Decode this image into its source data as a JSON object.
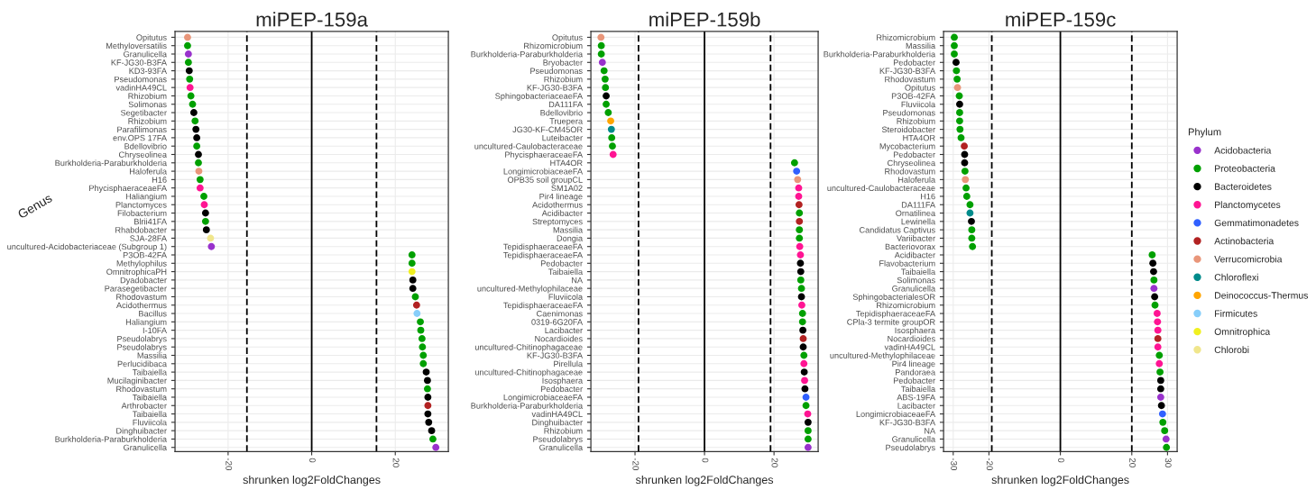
{
  "chart_data": [
    {
      "type": "scatter",
      "orientation": "horizontal",
      "title": "miPEP-159a",
      "xlabel": "shrunken log2FoldChanges",
      "ylabel": "Genus",
      "marker": "circle",
      "grid": true,
      "xlim": [
        -32.7,
        32.7
      ],
      "xticks": [
        -20,
        0,
        20
      ],
      "ref_lines": [
        {
          "axis": "x",
          "value": 0,
          "line_style": "solid",
          "color": "#000000"
        },
        {
          "axis": "x",
          "value": -15.5,
          "line_style": "dashed",
          "color": "#000000"
        },
        {
          "axis": "x",
          "value": 15.5,
          "line_style": "dashed",
          "color": "#000000"
        }
      ],
      "categories": [
        "Opitutus",
        "Methyloversatilis",
        "Granulicella",
        "KF-JG30-B3FA",
        "KD3-93FA",
        "Pseudomonas",
        "vadinHA49CL",
        "Rhizobium",
        "Solimonas",
        "Segetibacter",
        "Rhizobium",
        "Parafilimonas",
        "env.OPS 17FA",
        "Bdellovibrio",
        "Chryseolinea",
        "Burkholderia-Paraburkholderia",
        "Haloferula",
        "H16",
        "PhycisphaeraceaeFA",
        "Haliangium",
        "Planctomyces",
        "Filobacterium",
        "Blrii41FA",
        "Rhabdobacter",
        "SJA-28FA",
        "uncultured-Acidobacteriaceae (Subgroup 1)",
        "P3OB-42FA",
        "Methylophilus",
        "OmnitrophicaPH",
        "Dyadobacter",
        "Parasegetibacter",
        "Rhodovastum",
        "Acidothermus",
        "Bacillus",
        "Haliangium",
        "I-10FA",
        "Pseudolabrys",
        "Pseudolabrys",
        "Massilia",
        "Perlucidibaca",
        "Taibaiella",
        "Mucilaginibacter",
        "Rhodovastum",
        "Taibaiella",
        "Arthrobacter",
        "Taibaiella",
        "Fluviicola",
        "Dinghuibacter",
        "Burkholderia-Paraburkholderia",
        "Granulicella"
      ],
      "values": [
        -29.7,
        -29.7,
        -29.5,
        -29.5,
        -29.3,
        -29.2,
        -29.1,
        -28.9,
        -28.5,
        -28.2,
        -27.9,
        -27.7,
        -27.5,
        -27.5,
        -27.1,
        -27.1,
        -27.0,
        -26.7,
        -26.7,
        -25.8,
        -25.7,
        -25.4,
        -25.4,
        -25.2,
        -24.2,
        -24.0,
        24.0,
        24.0,
        24.0,
        24.2,
        24.2,
        24.8,
        25.1,
        25.2,
        26.0,
        26.1,
        26.4,
        26.5,
        26.7,
        26.7,
        27.4,
        27.7,
        27.7,
        27.8,
        27.8,
        27.8,
        28.0,
        28.7,
        29.0,
        29.7
      ],
      "colors": [
        "#e9967a",
        "#00a000",
        "#9932cc",
        "#00a000",
        "#000000",
        "#00a000",
        "#ff1493",
        "#00a000",
        "#00a000",
        "#000000",
        "#00a000",
        "#000000",
        "#000000",
        "#00a000",
        "#000000",
        "#00a000",
        "#e9967a",
        "#00a000",
        "#ff1493",
        "#00a000",
        "#ff1493",
        "#000000",
        "#00a000",
        "#000000",
        "#f0e68c",
        "#9932cc",
        "#00a000",
        "#00a000",
        "#f0f020",
        "#000000",
        "#000000",
        "#00a000",
        "#b22222",
        "#87cefa",
        "#00a000",
        "#00a000",
        "#00a000",
        "#00a000",
        "#00a000",
        "#00a000",
        "#000000",
        "#000000",
        "#00a000",
        "#000000",
        "#b22222",
        "#000000",
        "#000000",
        "#000000",
        "#00a000",
        "#9932cc"
      ]
    },
    {
      "type": "scatter",
      "orientation": "horizontal",
      "title": "miPEP-159b",
      "xlabel": "shrunken log2FoldChanges",
      "marker": "circle",
      "grid": true,
      "xlim": [
        -32.7,
        32.7
      ],
      "xticks": [
        -20,
        0,
        20
      ],
      "ref_lines": [
        {
          "axis": "x",
          "value": 0,
          "line_style": "solid",
          "color": "#000000"
        },
        {
          "axis": "x",
          "value": -19,
          "line_style": "dashed",
          "color": "#000000"
        },
        {
          "axis": "x",
          "value": 19,
          "line_style": "dashed",
          "color": "#000000"
        }
      ],
      "categories": [
        "Opitutus",
        "Rhizomicrobium",
        "Burkholderia-Paraburkholderia",
        "Bryobacter",
        "Pseudomonas",
        "Rhizobium",
        "KF-JG30-B3FA",
        "SphingobacteriaceaeFA",
        "DA111FA",
        "Bdellovibrio",
        "Truepera",
        "JG30-KF-CM45OR",
        "Luteibacter",
        "uncultured-Caulobacteraceae",
        "PhycisphaeraceaeFA",
        "HTA4OR",
        "LongimicrobiaceaeFA",
        "OPB35 soil groupCL",
        "SM1A02",
        "Pir4 lineage",
        "Acidothermus",
        "Acidibacter",
        "Streptomyces",
        "Massilia",
        "Dongia",
        "TepidisphaeraceaeFA",
        "TepidisphaeraceaeFA",
        "Pedobacter",
        "Taibaiella",
        "NA",
        "uncultured-Methylophilaceae",
        "Fluviicola",
        "TepidisphaeraceaeFA",
        "Caenimonas",
        "0319-6G20FA",
        "Lacibacter",
        "Nocardioides",
        "uncultured-Chitinophagaceae",
        "KF-JG30-B3FA",
        "Pirellula",
        "uncultured-Chitinophagaceae",
        "Isosphaera",
        "Pedobacter",
        "LongimicrobiaceaeFA",
        "Burkholderia-Paraburkholderia",
        "vadinHA49CL",
        "Dinghuibacter",
        "Rhizobium",
        "Pseudolabrys",
        "Granulicella"
      ],
      "values": [
        -29.8,
        -29.7,
        -29.7,
        -29.4,
        -28.9,
        -28.6,
        -28.5,
        -28.3,
        -28.3,
        -27.7,
        -27.0,
        -26.8,
        -26.7,
        -26.5,
        -26.3,
        25.9,
        26.5,
        26.8,
        27.1,
        27.1,
        27.2,
        27.3,
        27.3,
        27.3,
        27.3,
        27.4,
        27.6,
        27.6,
        27.7,
        27.7,
        27.9,
        27.9,
        28.0,
        28.2,
        28.2,
        28.3,
        28.4,
        28.4,
        28.6,
        28.6,
        28.7,
        28.8,
        28.9,
        29.2,
        29.2,
        29.7,
        29.8,
        29.8,
        29.8,
        29.8
      ],
      "colors": [
        "#e9967a",
        "#00a000",
        "#00a000",
        "#9932cc",
        "#00a000",
        "#00a000",
        "#00a000",
        "#000000",
        "#00a000",
        "#00a000",
        "#ffa500",
        "#008b8b",
        "#00a000",
        "#00a000",
        "#ff1493",
        "#00a000",
        "#3060ff",
        "#e9967a",
        "#ff1493",
        "#ff1493",
        "#b22222",
        "#00a000",
        "#b22222",
        "#00a000",
        "#00a000",
        "#ff1493",
        "#ff1493",
        "#000000",
        "#000000",
        "#00a000",
        "#00a000",
        "#000000",
        "#ff1493",
        "#00a000",
        "#00a000",
        "#000000",
        "#b22222",
        "#000000",
        "#00a000",
        "#ff1493",
        "#000000",
        "#ff1493",
        "#000000",
        "#3060ff",
        "#00a000",
        "#ff1493",
        "#000000",
        "#00a000",
        "#00a000",
        "#9932cc"
      ]
    },
    {
      "type": "scatter",
      "orientation": "horizontal",
      "title": "miPEP-159c",
      "xlabel": "shrunken log2FoldChanges",
      "marker": "circle",
      "grid": true,
      "legend": "right",
      "legend_title": "Phylum",
      "xlim": [
        -32.7,
        32.7
      ],
      "xticks": [
        -30,
        -20,
        0,
        20,
        30
      ],
      "ref_lines": [
        {
          "axis": "x",
          "value": 0,
          "line_style": "solid",
          "color": "#000000"
        },
        {
          "axis": "x",
          "value": -19.2,
          "line_style": "dashed",
          "color": "#000000"
        },
        {
          "axis": "x",
          "value": 20,
          "line_style": "dashed",
          "color": "#000000"
        }
      ],
      "categories": [
        "Rhizomicrobium",
        "Massilia",
        "Burkholderia-Paraburkholderia",
        "Pedobacter",
        "KF-JG30-B3FA",
        "Rhodovastum",
        "Opitutus",
        "P3OB-42FA",
        "Fluviicola",
        "Pseudomonas",
        "Rhizobium",
        "Steroidobacter",
        "HTA4OR",
        "Mycobacterium",
        "Pedobacter",
        "Chryseolinea",
        "Rhodovastum",
        "Haloferula",
        "uncultured-Caulobacteraceae",
        "H16",
        "DA111FA",
        "Ornatilinea",
        "Lewinella",
        "Candidatus Captivus",
        "Variibacter",
        "Bacteriovorax",
        "Acidibacter",
        "Flavobacterium",
        "Taibaiella",
        "Solimonas",
        "Granulicella",
        "SphingobacterialesOR",
        "Rhizomicrobium",
        "TepidisphaeraceaeFA",
        "CPla-3 termite groupOR",
        "Isosphaera",
        "Nocardioides",
        "vadinHA49CL",
        "uncultured-Methylophilaceae",
        "Pir4 lineage",
        "Pandoraea",
        "Pedobacter",
        "Taibaiella",
        "ABS-19FA",
        "Lacibacter",
        "LongimicrobiaceaeFA",
        "KF-JG30-B3FA",
        "NA",
        "Granulicella",
        "Pseudolabrys"
      ],
      "series": [
        {
          "name": "Acidobacteria",
          "color": "#9932cc",
          "values": [
            null,
            null,
            null,
            null,
            null,
            null,
            null,
            null,
            null,
            null,
            null,
            null,
            null,
            null,
            null,
            null,
            null,
            null,
            null,
            null,
            null,
            null,
            null,
            null,
            null,
            null,
            null,
            null,
            null,
            null,
            26.2,
            null,
            null,
            null,
            null,
            null,
            null,
            null,
            null,
            null,
            null,
            null,
            null,
            28.1,
            null,
            null,
            null,
            null,
            29.6,
            null
          ]
        },
        {
          "name": "Proteobacteria",
          "color": "#00a000",
          "values": [
            -29.7,
            -29.7,
            -29.7,
            null,
            -29.1,
            -28.9,
            null,
            -28.3,
            null,
            -28.2,
            -28.2,
            -28.1,
            -27.8,
            null,
            null,
            null,
            -26.7,
            null,
            -26.4,
            -26.2,
            -25.3,
            null,
            null,
            -24.8,
            -24.8,
            -24.6,
            25.7,
            null,
            null,
            26.2,
            null,
            null,
            26.5,
            null,
            null,
            null,
            null,
            null,
            27.7,
            null,
            27.9,
            null,
            null,
            null,
            null,
            null,
            28.7,
            29.2,
            null,
            29.7
          ]
        },
        {
          "name": "Bacteroidetes",
          "color": "#000000",
          "values": [
            null,
            null,
            null,
            -29.2,
            null,
            null,
            null,
            null,
            -28.2,
            null,
            null,
            null,
            null,
            null,
            -26.8,
            -26.8,
            null,
            null,
            null,
            null,
            null,
            null,
            -24.9,
            null,
            null,
            null,
            null,
            25.9,
            26.1,
            null,
            null,
            26.4,
            null,
            null,
            null,
            null,
            null,
            null,
            null,
            null,
            null,
            28.1,
            28.1,
            null,
            28.3,
            null,
            null,
            null,
            null,
            null
          ]
        },
        {
          "name": "Planctomycetes",
          "color": "#ff1493",
          "values": [
            null,
            null,
            null,
            null,
            null,
            null,
            null,
            null,
            null,
            null,
            null,
            null,
            null,
            null,
            null,
            null,
            null,
            null,
            null,
            null,
            null,
            null,
            null,
            null,
            null,
            null,
            null,
            null,
            null,
            null,
            null,
            null,
            null,
            27.1,
            27.2,
            27.3,
            null,
            27.3,
            null,
            27.7,
            null,
            null,
            null,
            null,
            null,
            null,
            null,
            null,
            null,
            null
          ]
        },
        {
          "name": "Gemmatimonadetes",
          "color": "#3060ff",
          "values": [
            null,
            null,
            null,
            null,
            null,
            null,
            null,
            null,
            null,
            null,
            null,
            null,
            null,
            null,
            null,
            null,
            null,
            null,
            null,
            null,
            null,
            null,
            null,
            null,
            null,
            null,
            null,
            null,
            null,
            null,
            null,
            null,
            null,
            null,
            null,
            null,
            null,
            null,
            null,
            null,
            null,
            null,
            null,
            null,
            null,
            28.6,
            null,
            null,
            null,
            null
          ]
        },
        {
          "name": "Actinobacteria",
          "color": "#b22222",
          "values": [
            null,
            null,
            null,
            null,
            null,
            null,
            null,
            null,
            null,
            null,
            null,
            null,
            null,
            -26.9,
            null,
            null,
            null,
            null,
            null,
            null,
            null,
            null,
            null,
            null,
            null,
            null,
            null,
            null,
            null,
            null,
            null,
            null,
            null,
            null,
            null,
            null,
            27.3,
            null,
            null,
            null,
            null,
            null,
            null,
            null,
            null,
            null,
            null,
            null,
            null,
            null
          ]
        },
        {
          "name": "Verrucomicrobia",
          "color": "#e9967a",
          "values": [
            null,
            null,
            null,
            null,
            null,
            null,
            -28.8,
            null,
            null,
            null,
            null,
            null,
            null,
            null,
            null,
            null,
            null,
            -26.6,
            null,
            null,
            null,
            null,
            null,
            null,
            null,
            null,
            null,
            null,
            null,
            null,
            null,
            null,
            null,
            null,
            null,
            null,
            null,
            null,
            null,
            null,
            null,
            null,
            null,
            null,
            null,
            null,
            null,
            null,
            null,
            null
          ]
        },
        {
          "name": "Chloroflexi",
          "color": "#008b8b",
          "values": [
            null,
            null,
            null,
            null,
            null,
            null,
            null,
            null,
            null,
            null,
            null,
            null,
            null,
            null,
            null,
            null,
            null,
            null,
            null,
            null,
            null,
            -25.3,
            null,
            null,
            null,
            null,
            null,
            null,
            null,
            null,
            null,
            null,
            null,
            null,
            null,
            null,
            null,
            null,
            null,
            null,
            null,
            null,
            null,
            null,
            null,
            null,
            null,
            null,
            null,
            null
          ]
        },
        {
          "name": "Deinococcus-Thermus",
          "color": "#ffa500",
          "values": [
            null,
            null,
            null,
            null,
            null,
            null,
            null,
            null,
            null,
            null,
            null,
            null,
            null,
            null,
            null,
            null,
            null,
            null,
            null,
            null,
            null,
            null,
            null,
            null,
            null,
            null,
            null,
            null,
            null,
            null,
            null,
            null,
            null,
            null,
            null,
            null,
            null,
            null,
            null,
            null,
            null,
            null,
            null,
            null,
            null,
            null,
            null,
            null,
            null,
            null
          ]
        },
        {
          "name": "Firmicutes",
          "color": "#87cefa",
          "values": [
            null,
            null,
            null,
            null,
            null,
            null,
            null,
            null,
            null,
            null,
            null,
            null,
            null,
            null,
            null,
            null,
            null,
            null,
            null,
            null,
            null,
            null,
            null,
            null,
            null,
            null,
            null,
            null,
            null,
            null,
            null,
            null,
            null,
            null,
            null,
            null,
            null,
            null,
            null,
            null,
            null,
            null,
            null,
            null,
            null,
            null,
            null,
            null,
            null,
            null
          ]
        },
        {
          "name": "Omnitrophica",
          "color": "#f0f020",
          "values": [
            null,
            null,
            null,
            null,
            null,
            null,
            null,
            null,
            null,
            null,
            null,
            null,
            null,
            null,
            null,
            null,
            null,
            null,
            null,
            null,
            null,
            null,
            null,
            null,
            null,
            null,
            null,
            null,
            null,
            null,
            null,
            null,
            null,
            null,
            null,
            null,
            null,
            null,
            null,
            null,
            null,
            null,
            null,
            null,
            null,
            null,
            null,
            null,
            null,
            null
          ]
        },
        {
          "name": "Chlorobi",
          "color": "#f0e68c",
          "values": [
            null,
            null,
            null,
            null,
            null,
            null,
            null,
            null,
            null,
            null,
            null,
            null,
            null,
            null,
            null,
            null,
            null,
            null,
            null,
            null,
            null,
            null,
            null,
            null,
            null,
            null,
            null,
            null,
            null,
            null,
            null,
            null,
            null,
            null,
            null,
            null,
            null,
            null,
            null,
            null,
            null,
            null,
            null,
            null,
            null,
            null,
            null,
            null,
            null,
            null
          ]
        }
      ]
    }
  ]
}
